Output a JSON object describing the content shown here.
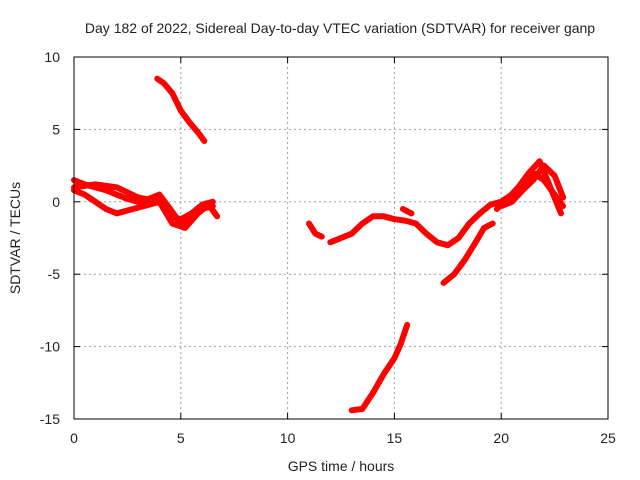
{
  "chart_data": {
    "type": "scatter",
    "title": "Day 182 of 2022, Sidereal Day-to-day VTEC variation (SDTVAR) for receiver ganp",
    "xlabel": "GPS time / hours",
    "ylabel": "SDTVAR / TECUs",
    "xlim": [
      0,
      25
    ],
    "ylim": [
      -15,
      10
    ],
    "xticks": [
      0,
      5,
      10,
      15,
      20,
      25
    ],
    "yticks": [
      -15,
      -10,
      -5,
      0,
      5,
      10
    ],
    "grid": true,
    "series_color": "#ff0000",
    "series": [
      {
        "name": "segment-1",
        "x": [
          0.0,
          0.5,
          1.0,
          1.5,
          2.0,
          2.5,
          3.0,
          3.5,
          4.0,
          4.5,
          5.0,
          5.5,
          6.0,
          6.5
        ],
        "y": [
          1.5,
          1.2,
          1.0,
          0.8,
          0.5,
          0.2,
          0.0,
          0.2,
          0.5,
          -0.5,
          -1.5,
          -1.2,
          -0.5,
          -0.3
        ]
      },
      {
        "name": "segment-2",
        "x": [
          0.0,
          0.5,
          1.0,
          1.5,
          2.0,
          2.5,
          3.0,
          3.5,
          4.0,
          4.5,
          5.0,
          5.5,
          6.0,
          6.5
        ],
        "y": [
          0.8,
          0.5,
          0.0,
          -0.5,
          -0.8,
          -0.6,
          -0.4,
          -0.2,
          0.0,
          -1.0,
          -1.2,
          -0.8,
          -0.2,
          0.0
        ]
      },
      {
        "name": "segment-3",
        "x": [
          0.0,
          1.0,
          2.0,
          3.0,
          4.0,
          4.6,
          5.2,
          5.8,
          6.3,
          6.7
        ],
        "y": [
          1.0,
          1.2,
          1.0,
          0.3,
          0.0,
          -1.5,
          -1.8,
          -0.8,
          -0.2,
          -1.0
        ]
      },
      {
        "name": "segment-4",
        "x": [
          3.9,
          4.2,
          4.6,
          5.0,
          5.4,
          5.8,
          6.1
        ],
        "y": [
          8.5,
          8.2,
          7.5,
          6.3,
          5.5,
          4.8,
          4.2
        ]
      },
      {
        "name": "segment-5",
        "x": [
          11.0,
          11.3,
          11.6
        ],
        "y": [
          -1.5,
          -2.2,
          -2.4
        ]
      },
      {
        "name": "segment-6",
        "x": [
          12.0,
          12.5,
          13.0,
          13.5,
          14.0,
          14.5,
          15.0,
          15.5,
          16.0,
          16.5,
          17.0,
          17.5,
          18.0,
          18.5,
          19.0,
          19.5,
          20.0,
          20.5,
          21.0,
          21.5,
          22.0,
          22.5,
          22.9
        ],
        "y": [
          -2.8,
          -2.5,
          -2.2,
          -1.5,
          -1.0,
          -1.0,
          -1.2,
          -1.3,
          -1.5,
          -2.2,
          -2.8,
          -3.0,
          -2.5,
          -1.5,
          -0.8,
          -0.2,
          0.0,
          0.5,
          1.2,
          2.0,
          1.5,
          0.5,
          -0.3
        ]
      },
      {
        "name": "segment-7",
        "x": [
          15.4,
          15.8
        ],
        "y": [
          -0.5,
          -0.8
        ]
      },
      {
        "name": "segment-8",
        "x": [
          13.0,
          13.5,
          14.0,
          14.5,
          15.0,
          15.3,
          15.6
        ],
        "y": [
          -14.4,
          -14.3,
          -13.2,
          -11.9,
          -10.8,
          -9.8,
          -8.5
        ]
      },
      {
        "name": "segment-9",
        "x": [
          17.3,
          17.8,
          18.3,
          18.8,
          19.2,
          19.6
        ],
        "y": [
          -5.6,
          -5.0,
          -4.0,
          -2.8,
          -1.8,
          -1.5
        ]
      },
      {
        "name": "segment-10",
        "x": [
          19.8,
          20.3,
          20.8,
          21.3,
          21.8,
          22.3,
          22.8
        ],
        "y": [
          -0.5,
          0.2,
          1.0,
          2.0,
          2.8,
          1.0,
          -0.8
        ]
      },
      {
        "name": "segment-11",
        "x": [
          20.0,
          20.5,
          21.0,
          21.5,
          22.0,
          22.5,
          22.9
        ],
        "y": [
          -0.3,
          0.0,
          0.8,
          1.5,
          2.5,
          1.8,
          0.3
        ]
      }
    ]
  }
}
